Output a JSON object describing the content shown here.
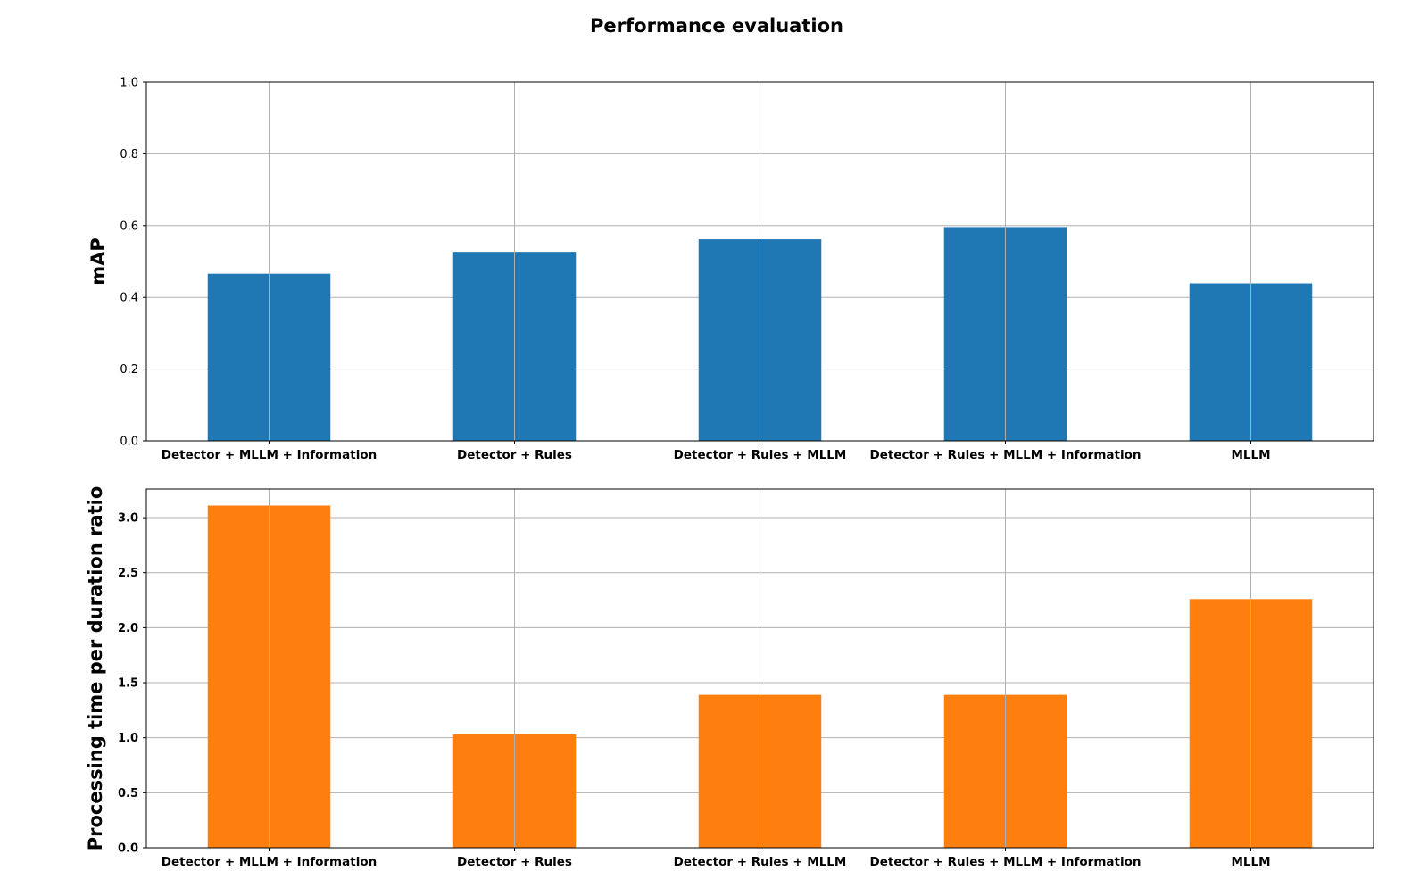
{
  "title": "Performance evaluation",
  "chart_data": [
    {
      "type": "bar",
      "ylabel": "mAP",
      "xlabel": "",
      "categories": [
        "Detector + MLLM + Information",
        "Detector + Rules",
        "Detector + Rules + MLLM",
        "Detector + Rules + MLLM + Information",
        "MLLM"
      ],
      "values": [
        0.466,
        0.527,
        0.562,
        0.596,
        0.439
      ],
      "ylim": [
        0,
        1.0
      ],
      "yticks": [
        "0.0",
        "0.2",
        "0.4",
        "0.6",
        "0.8",
        "1.0"
      ],
      "ytick_values": [
        0,
        0.2,
        0.4,
        0.6,
        0.8,
        1.0
      ],
      "grid": true,
      "color": "#1f77b4"
    },
    {
      "type": "bar",
      "ylabel": "Processing time per duration ratio",
      "xlabel": "",
      "categories": [
        "Detector + MLLM + Information",
        "Detector + Rules",
        "Detector + Rules + MLLM",
        "Detector + Rules + MLLM + Information",
        "MLLM"
      ],
      "values": [
        3.11,
        1.03,
        1.39,
        1.39,
        2.26
      ],
      "ylim": [
        0,
        3.26
      ],
      "yticks": [
        "0.0",
        "0.5",
        "1.0",
        "1.5",
        "2.0",
        "2.5",
        "3.0"
      ],
      "ytick_values": [
        0,
        0.5,
        1.0,
        1.5,
        2.0,
        2.5,
        3.0
      ],
      "grid": true,
      "color": "#ff7f0e"
    }
  ]
}
